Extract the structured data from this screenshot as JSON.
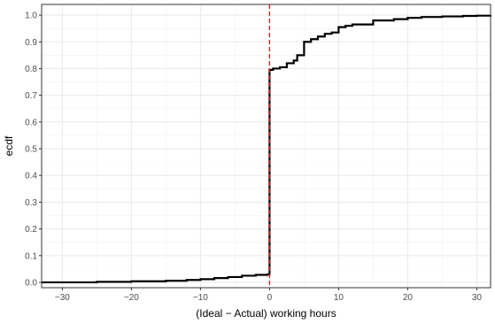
{
  "chart_data": {
    "type": "line",
    "subtype": "step-ecdf",
    "xlabel": "(Ideal − Actual) working hours",
    "ylabel": "ecdf",
    "xlim": [
      -33,
      32
    ],
    "ylim": [
      -0.02,
      1.04
    ],
    "x_ticks": [
      -30,
      -20,
      -10,
      0,
      10,
      20,
      30
    ],
    "x_tick_labels": [
      "−30",
      "−20",
      "−10",
      "0",
      "10",
      "20",
      "30"
    ],
    "y_ticks": [
      0.0,
      0.1,
      0.2,
      0.3,
      0.4,
      0.5,
      0.6,
      0.7,
      0.8,
      0.9,
      1.0
    ],
    "y_tick_labels": [
      "0.0",
      "0.1",
      "0.2",
      "0.3",
      "0.4",
      "0.5",
      "0.6",
      "0.7",
      "0.8",
      "0.9",
      "1.0"
    ],
    "grid": true,
    "reference_line": {
      "x": 0,
      "color": "#e41a1c",
      "style": "dashed"
    },
    "series": [
      {
        "color": "#000000",
        "points": [
          [
            -33,
            0.0
          ],
          [
            -25,
            0.002
          ],
          [
            -20,
            0.004
          ],
          [
            -15,
            0.006
          ],
          [
            -12,
            0.009
          ],
          [
            -10,
            0.012
          ],
          [
            -8,
            0.016
          ],
          [
            -6,
            0.02
          ],
          [
            -4,
            0.025
          ],
          [
            -2,
            0.028
          ],
          [
            -0.3,
            0.03
          ],
          [
            0,
            0.795
          ],
          [
            0.5,
            0.8
          ],
          [
            1.5,
            0.805
          ],
          [
            2.5,
            0.82
          ],
          [
            3.5,
            0.83
          ],
          [
            4,
            0.85
          ],
          [
            5,
            0.9
          ],
          [
            6,
            0.91
          ],
          [
            7,
            0.92
          ],
          [
            8,
            0.93
          ],
          [
            9,
            0.935
          ],
          [
            10,
            0.955
          ],
          [
            11,
            0.96
          ],
          [
            12,
            0.965
          ],
          [
            15,
            0.98
          ],
          [
            18,
            0.985
          ],
          [
            20,
            0.99
          ],
          [
            22,
            0.993
          ],
          [
            25,
            0.995
          ],
          [
            28,
            0.997
          ],
          [
            30,
            0.998
          ],
          [
            32,
            1.0
          ]
        ]
      }
    ]
  }
}
